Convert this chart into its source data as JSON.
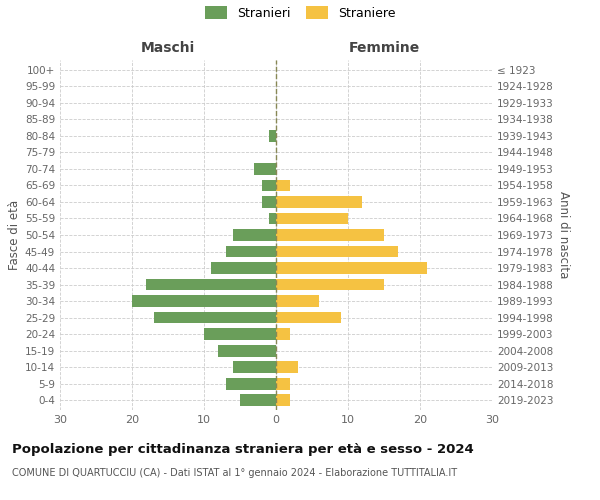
{
  "age_groups": [
    "0-4",
    "5-9",
    "10-14",
    "15-19",
    "20-24",
    "25-29",
    "30-34",
    "35-39",
    "40-44",
    "45-49",
    "50-54",
    "55-59",
    "60-64",
    "65-69",
    "70-74",
    "75-79",
    "80-84",
    "85-89",
    "90-94",
    "95-99",
    "100+"
  ],
  "birth_years": [
    "2019-2023",
    "2014-2018",
    "2009-2013",
    "2004-2008",
    "1999-2003",
    "1994-1998",
    "1989-1993",
    "1984-1988",
    "1979-1983",
    "1974-1978",
    "1969-1973",
    "1964-1968",
    "1959-1963",
    "1954-1958",
    "1949-1953",
    "1944-1948",
    "1939-1943",
    "1934-1938",
    "1929-1933",
    "1924-1928",
    "≤ 1923"
  ],
  "males": [
    5,
    7,
    6,
    8,
    10,
    17,
    20,
    18,
    9,
    7,
    6,
    1,
    2,
    2,
    3,
    0,
    1,
    0,
    0,
    0,
    0
  ],
  "females": [
    2,
    2,
    3,
    0,
    2,
    9,
    6,
    15,
    21,
    17,
    15,
    10,
    12,
    2,
    0,
    0,
    0,
    0,
    0,
    0,
    0
  ],
  "male_color": "#6a9e5a",
  "female_color": "#f5c242",
  "title": "Popolazione per cittadinanza straniera per età e sesso - 2024",
  "subtitle": "COMUNE DI QUARTUCCIU (CA) - Dati ISTAT al 1° gennaio 2024 - Elaborazione TUTTITALIA.IT",
  "xlabel_left": "Maschi",
  "xlabel_right": "Femmine",
  "ylabel_left": "Fasce di età",
  "ylabel_right": "Anni di nascita",
  "legend_males": "Stranieri",
  "legend_females": "Straniere",
  "xlim": 30,
  "background_color": "#ffffff",
  "grid_color": "#cccccc"
}
